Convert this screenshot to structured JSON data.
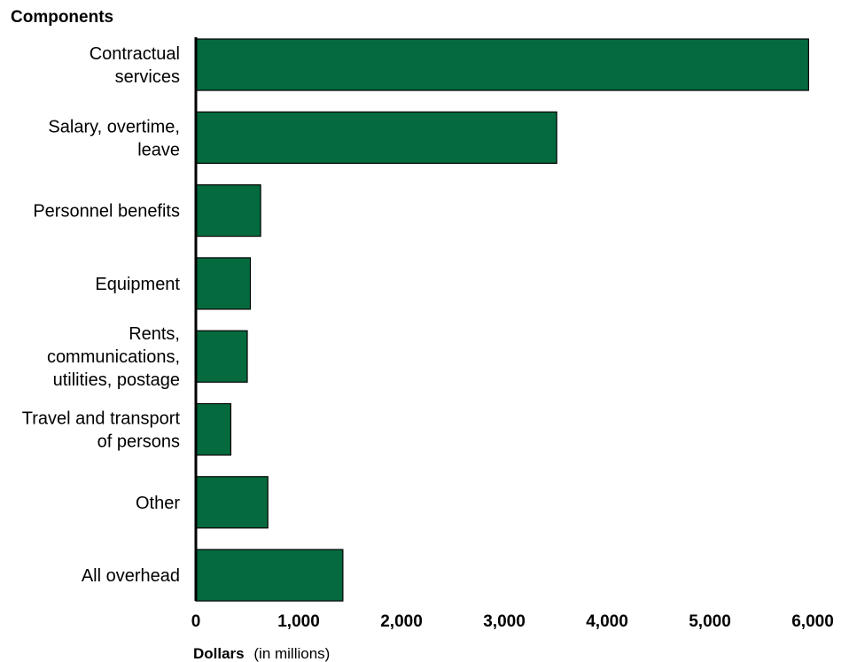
{
  "chart_data": {
    "type": "bar",
    "orientation": "horizontal",
    "y_axis_title": "Components",
    "x_axis_title_bold": "Dollars",
    "x_axis_title_rest": "(in millions)",
    "categories": [
      "Contractual services",
      "Salary, overtime, leave",
      "Personnel benefits",
      "Equipment",
      "Rents, communications, utilities, postage",
      "Travel and transport of persons",
      "Other",
      "All overhead"
    ],
    "category_lines": [
      [
        "Contractual",
        "services"
      ],
      [
        "Salary, overtime,",
        "leave"
      ],
      [
        "Personnel benefits"
      ],
      [
        "Equipment"
      ],
      [
        "Rents,",
        "communications,",
        "utilities, postage"
      ],
      [
        "Travel and transport",
        "of persons"
      ],
      [
        "Other"
      ],
      [
        "All overhead"
      ]
    ],
    "values": [
      5960,
      3510,
      630,
      530,
      500,
      340,
      700,
      1430
    ],
    "xlim": [
      0,
      6000
    ],
    "xticks": [
      0,
      1000,
      2000,
      3000,
      4000,
      5000,
      6000
    ],
    "xtick_labels": [
      "0",
      "1,000",
      "2,000",
      "3,000",
      "4,000",
      "5,000",
      "6,000"
    ],
    "bar_color": "#056b3f",
    "grid": false
  }
}
